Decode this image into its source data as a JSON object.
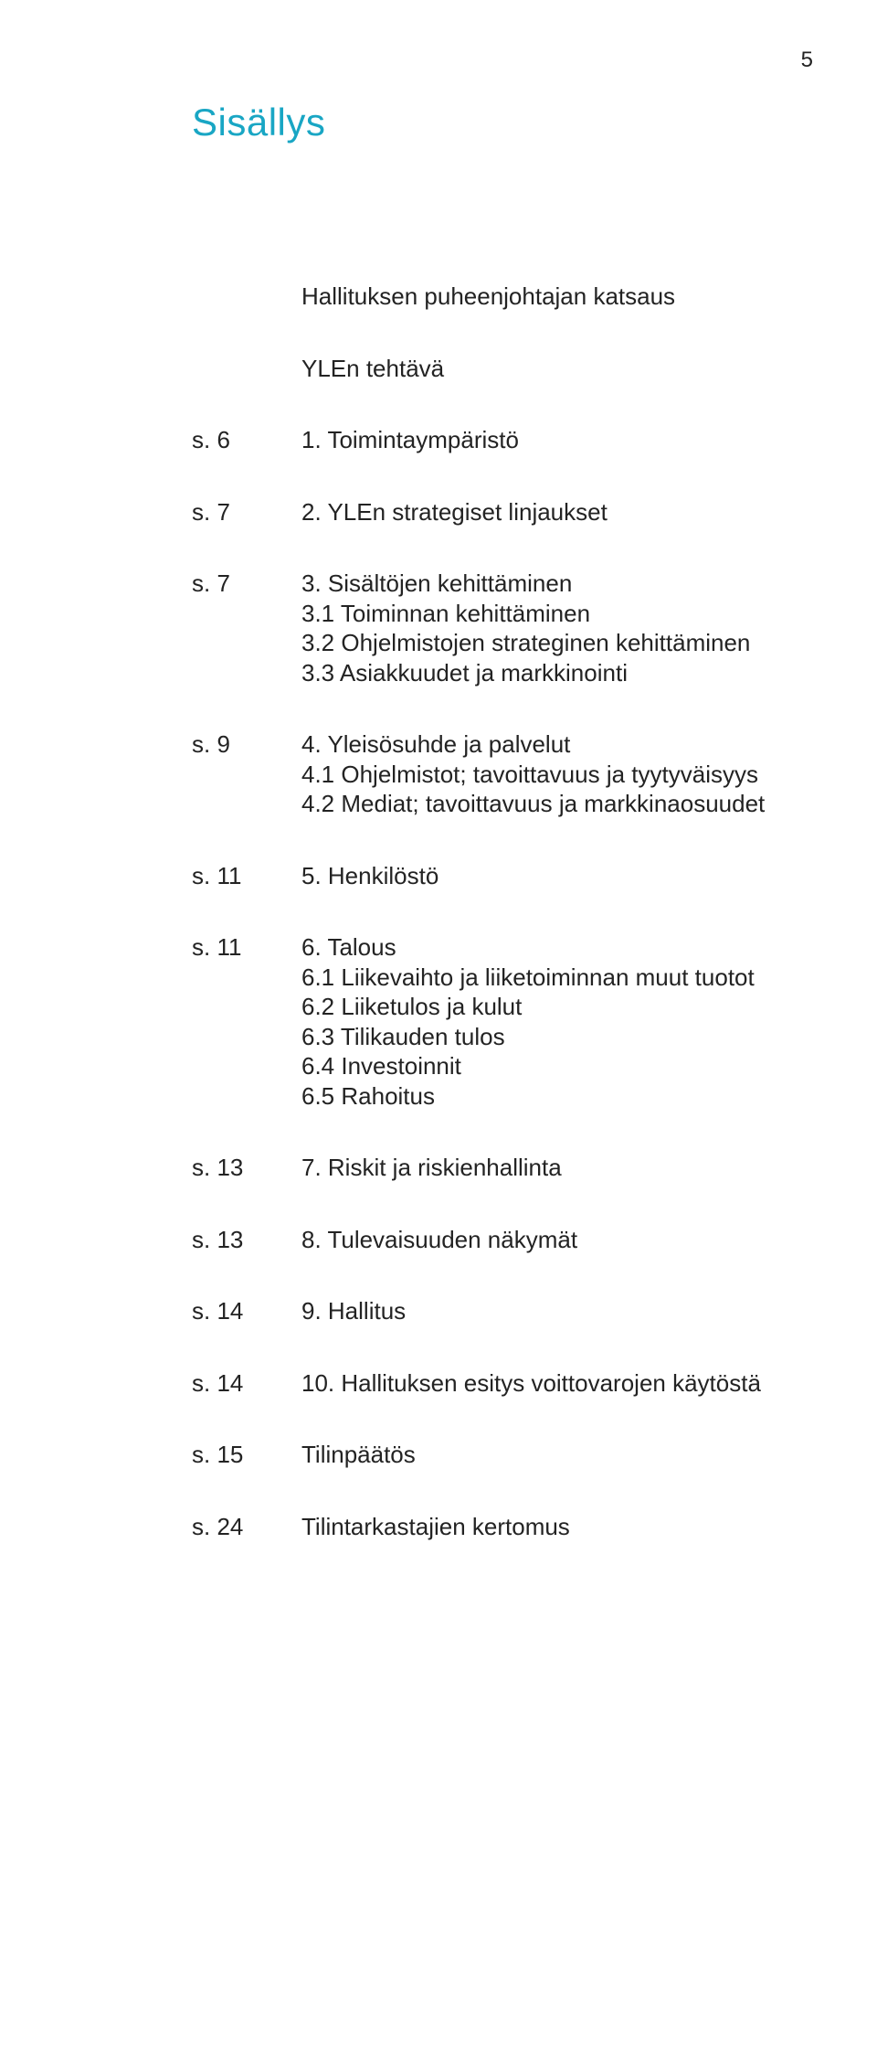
{
  "page_number": "5",
  "title": "Sisällys",
  "colors": {
    "accent": "#19a6c4",
    "text": "#232323",
    "background": "#ffffff"
  },
  "typography": {
    "title_fontsize": 42,
    "body_fontsize": 26,
    "pagenum_fontsize": 24,
    "font_family": "Helvetica Neue, Helvetica, Arial, sans-serif",
    "weight_title": 400,
    "weight_body": 300
  },
  "pre": [
    "Hallituksen puheenjohtajan katsaus",
    "YLEn tehtävä"
  ],
  "entries": [
    {
      "page": "s. 6",
      "label": "1. Toimintaympäristö",
      "subs": []
    },
    {
      "page": "s. 7",
      "label": "2. YLEn strategiset linjaukset",
      "subs": []
    },
    {
      "page": "s. 7",
      "label": "3. Sisältöjen kehittäminen",
      "subs": [
        "3.1 Toiminnan kehittäminen",
        "3.2 Ohjelmistojen strateginen kehittäminen",
        "3.3 Asiakkuudet ja markkinointi"
      ]
    },
    {
      "page": "s. 9",
      "label": "4. Yleisösuhde ja palvelut",
      "subs": [
        "4.1 Ohjelmistot; tavoittavuus ja tyytyväisyys",
        "4.2 Mediat; tavoittavuus ja markkinaosuudet"
      ]
    },
    {
      "page": "s. 11",
      "label": "5. Henkilöstö",
      "subs": []
    },
    {
      "page": "s. 11",
      "label": "6. Talous",
      "subs": [
        "6.1 Liikevaihto ja liiketoiminnan muut tuotot",
        "6.2 Liiketulos ja kulut",
        "6.3 Tilikauden tulos",
        "6.4 Investoinnit",
        "6.5 Rahoitus"
      ]
    },
    {
      "page": "s. 13",
      "label": "7. Riskit ja riskienhallinta",
      "subs": []
    },
    {
      "page": "s. 13",
      "label": "8. Tulevaisuuden näkymät",
      "subs": []
    },
    {
      "page": "s. 14",
      "label": "9. Hallitus",
      "subs": []
    },
    {
      "page": "s. 14",
      "label": "10. Hallituksen esitys voittovarojen käytöstä",
      "subs": []
    },
    {
      "page": "s. 15",
      "label": "Tilinpäätös",
      "subs": []
    },
    {
      "page": "s. 24",
      "label": "Tilintarkastajien kertomus",
      "subs": []
    }
  ]
}
